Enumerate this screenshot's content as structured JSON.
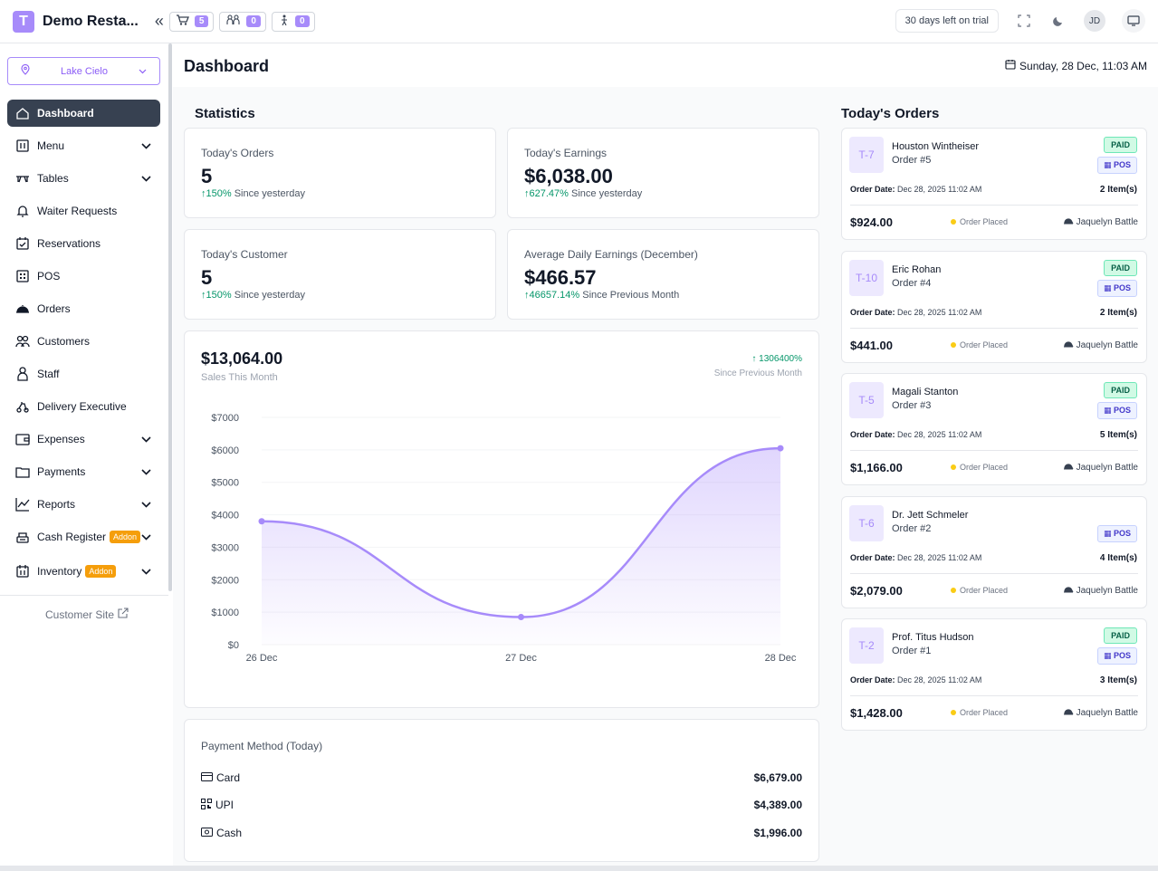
{
  "app": {
    "logo_letter": "T",
    "title": "Demo Resta...",
    "collapse_glyph": "«"
  },
  "topbar": {
    "counters": [
      {
        "icon": "cart-icon",
        "count": "5"
      },
      {
        "icon": "waiter-icon",
        "count": "0"
      },
      {
        "icon": "bell-person-icon",
        "count": "0"
      }
    ],
    "trial_text": "30 days left on trial",
    "avatar_initials": "JD"
  },
  "sidebar": {
    "location": "Lake Cielo",
    "items": [
      {
        "label": "Dashboard",
        "icon": "home-icon",
        "active": true,
        "chevron": false
      },
      {
        "label": "Menu",
        "icon": "menu-icon",
        "active": false,
        "chevron": true
      },
      {
        "label": "Tables",
        "icon": "tables-icon",
        "active": false,
        "chevron": true
      },
      {
        "label": "Waiter Requests",
        "icon": "bell-icon",
        "active": false,
        "chevron": false
      },
      {
        "label": "Reservations",
        "icon": "calendar-check-icon",
        "active": false,
        "chevron": false
      },
      {
        "label": "POS",
        "icon": "pos-icon",
        "active": false,
        "chevron": false
      },
      {
        "label": "Orders",
        "icon": "cloche-icon",
        "active": false,
        "chevron": false
      },
      {
        "label": "Customers",
        "icon": "users-icon",
        "active": false,
        "chevron": false
      },
      {
        "label": "Staff",
        "icon": "staff-icon",
        "active": false,
        "chevron": false
      },
      {
        "label": "Delivery Executive",
        "icon": "scooter-icon",
        "active": false,
        "chevron": false
      },
      {
        "label": "Expenses",
        "icon": "wallet-icon",
        "active": false,
        "chevron": true
      },
      {
        "label": "Payments",
        "icon": "folder-icon",
        "active": false,
        "chevron": true
      },
      {
        "label": "Reports",
        "icon": "chart-line-icon",
        "active": false,
        "chevron": true
      },
      {
        "label": "Cash Register",
        "icon": "cash-register-icon",
        "active": false,
        "chevron": true,
        "addon": "Addon"
      },
      {
        "label": "Inventory",
        "icon": "inventory-icon",
        "active": false,
        "chevron": true,
        "addon": "Addon"
      }
    ],
    "customer_site": "Customer Site"
  },
  "header": {
    "title": "Dashboard",
    "date": "Sunday, 28 Dec, 11:03 AM"
  },
  "statistics": {
    "title": "Statistics",
    "cards": [
      {
        "label": "Today's Orders",
        "value": "5",
        "change": "150%",
        "change_label": "Since yesterday"
      },
      {
        "label": "Today's Earnings",
        "value": "$6,038.00",
        "change": "627.47%",
        "change_label": "Since yesterday"
      },
      {
        "label": "Today's Customer",
        "value": "5",
        "change": "150%",
        "change_label": "Since yesterday"
      },
      {
        "label": "Average Daily Earnings (December)",
        "value": "$466.57",
        "change": "46657.14%",
        "change_label": "Since Previous Month"
      }
    ]
  },
  "sales": {
    "value": "$13,064.00",
    "label": "Sales This Month",
    "change": "1306400%",
    "change_label": "Since Previous Month"
  },
  "chart_data": {
    "type": "area",
    "categories": [
      "26 Dec",
      "27 Dec",
      "28 Dec"
    ],
    "values": [
      3800,
      850,
      6050
    ],
    "ylim": [
      0,
      7000
    ],
    "yticks": [
      "$0",
      "$1000",
      "$2000",
      "$3000",
      "$4000",
      "$5000",
      "$6000",
      "$7000"
    ],
    "ytick_values": [
      0,
      1000,
      2000,
      3000,
      4000,
      5000,
      6000,
      7000
    ],
    "color": "#a78bfa",
    "grid": true
  },
  "payment_method": {
    "title": "Payment Method (Today)",
    "rows": [
      {
        "name": "Card",
        "icon": "card-icon",
        "amount": "$6,679.00"
      },
      {
        "name": "UPI",
        "icon": "qr-icon",
        "amount": "$4,389.00"
      },
      {
        "name": "Cash",
        "icon": "cash-icon",
        "amount": "$1,996.00"
      }
    ]
  },
  "orders": {
    "title": "Today's Orders",
    "date_label": "Order Date:",
    "list": [
      {
        "table": "T-7",
        "customer": "Houston Wintheiser",
        "order": "Order #5",
        "paid": "PAID",
        "type": "POS",
        "date": "Dec 28, 2025 11:02 AM",
        "items": "2 Item(s)",
        "amount": "$924.00",
        "status": "Order Placed",
        "waiter": "Jaquelyn Battle"
      },
      {
        "table": "T-10",
        "customer": "Eric Rohan",
        "order": "Order #4",
        "paid": "PAID",
        "type": "POS",
        "date": "Dec 28, 2025 11:02 AM",
        "items": "2 Item(s)",
        "amount": "$441.00",
        "status": "Order Placed",
        "waiter": "Jaquelyn Battle"
      },
      {
        "table": "T-5",
        "customer": "Magali Stanton",
        "order": "Order #3",
        "paid": "PAID",
        "type": "POS",
        "date": "Dec 28, 2025 11:02 AM",
        "items": "5 Item(s)",
        "amount": "$1,166.00",
        "status": "Order Placed",
        "waiter": "Jaquelyn Battle"
      },
      {
        "table": "T-6",
        "customer": "Dr. Jett Schmeler",
        "order": "Order #2",
        "paid": "",
        "type": "POS",
        "date": "Dec 28, 2025 11:02 AM",
        "items": "4 Item(s)",
        "amount": "$2,079.00",
        "status": "Order Placed",
        "waiter": "Jaquelyn Battle"
      },
      {
        "table": "T-2",
        "customer": "Prof. Titus Hudson",
        "order": "Order #1",
        "paid": "PAID",
        "type": "POS",
        "date": "Dec 28, 2025 11:02 AM",
        "items": "3 Item(s)",
        "amount": "$1,428.00",
        "status": "Order Placed",
        "waiter": "Jaquelyn Battle"
      }
    ]
  }
}
